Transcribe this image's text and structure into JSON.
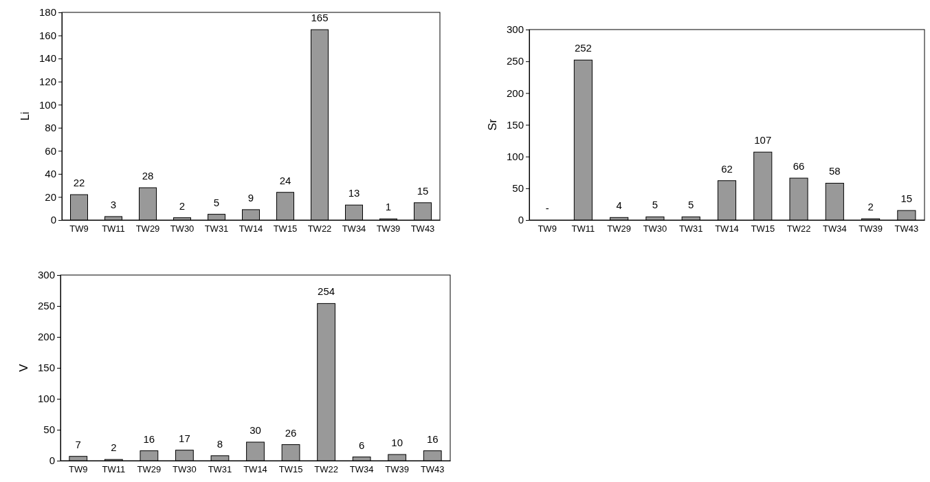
{
  "chart_data": [
    {
      "type": "bar",
      "ylabel": "Li",
      "categories": [
        "TW9",
        "TW11",
        "TW29",
        "TW30",
        "TW31",
        "TW14",
        "TW15",
        "TW22",
        "TW34",
        "TW39",
        "TW43"
      ],
      "values": [
        22,
        3,
        28,
        2,
        5,
        9,
        24,
        165,
        13,
        1,
        15
      ],
      "color": "#999999",
      "ylim": [
        0,
        180
      ],
      "yticks": [
        0,
        20,
        40,
        60,
        80,
        100,
        120,
        140,
        160,
        180
      ],
      "data_labels": true,
      "grid": false
    },
    {
      "type": "bar",
      "ylabel": "Sr",
      "categories": [
        "TW9",
        "TW11",
        "TW29",
        "TW30",
        "TW31",
        "TW14",
        "TW15",
        "TW22",
        "TW34",
        "TW39",
        "TW43"
      ],
      "values": [
        null,
        252,
        4,
        5,
        5,
        62,
        107,
        66,
        58,
        2,
        15
      ],
      "value_labels": [
        "-",
        "252",
        "4",
        "5",
        "5",
        "62",
        "107",
        "66",
        "58",
        "2",
        "15"
      ],
      "color": "#999999",
      "ylim": [
        0,
        300
      ],
      "yticks": [
        0,
        50,
        100,
        150,
        200,
        250,
        300
      ],
      "grid": false
    },
    {
      "type": "bar",
      "ylabel": "V",
      "categories": [
        "TW9",
        "TW11",
        "TW29",
        "TW30",
        "TW31",
        "TW14",
        "TW15",
        "TW22",
        "TW34",
        "TW39",
        "TW43"
      ],
      "values": [
        7,
        2,
        16,
        17,
        8,
        30,
        26,
        254,
        6,
        10,
        16
      ],
      "color": "#999999",
      "ylim": [
        0,
        300
      ],
      "yticks": [
        0,
        50,
        100,
        150,
        200,
        250,
        300
      ],
      "data_labels": true,
      "grid": false
    }
  ]
}
